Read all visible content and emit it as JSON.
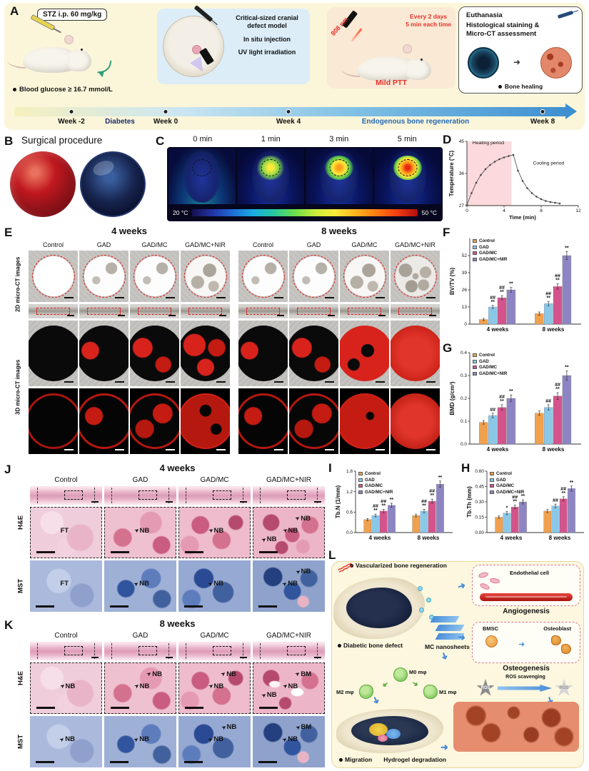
{
  "icons": {
    "arrow": "➜",
    "small_arrow": "➤",
    "nir": "≈≈≈"
  },
  "colors": {
    "control": "#F0A150",
    "gad": "#8BC8E8",
    "gad_mc": "#D4538C",
    "gad_mc_nir": "#8D85C3"
  },
  "groups": [
    "Control",
    "GAD",
    "GAD/MC",
    "GAD/MC+NIR"
  ],
  "panelA": {
    "label": "A",
    "step1": {
      "title": "STZ i.p. 60 mg/kg",
      "note": "Blood glucose ≥ 16.7 mmol/L"
    },
    "step2": {
      "line1": "Critical-sized cranial defect model",
      "line2": "In situ injection",
      "line3": "UV light irradiation"
    },
    "step3": {
      "laser": "808 nm",
      "schedule1": "Every 2 days",
      "schedule2": "5 min each time",
      "caption": "Mild PTT"
    },
    "step4": {
      "line1": "Euthanasia",
      "line2": "Histological staining &",
      "line3": "Micro-CT assessment",
      "caption": "Bone healing"
    },
    "timeline": {
      "week_m2": "Week -2",
      "week0": "Week 0",
      "week4": "Week 4",
      "week8": "Week 8",
      "phase1": "Diabetes",
      "phase2": "Endogenous bone regeneration"
    }
  },
  "panelB": {
    "label": "B",
    "title": "Surgical procedure"
  },
  "panelC": {
    "label": "C",
    "times": [
      "0 min",
      "1 min",
      "3 min",
      "5 min"
    ],
    "scale_min": "20 °C",
    "scale_max": "50 °C"
  },
  "panelD": {
    "label": "D"
  },
  "panelE": {
    "label": "E",
    "headers": [
      "4 weeks",
      "8 weeks"
    ],
    "columns": [
      "Control",
      "GAD",
      "GAD/MC",
      "GAD/MC+NIR"
    ],
    "row_2d": "2D micro-CT images",
    "row_3d": "3D micro-CT images"
  },
  "panelF": {
    "label": "F"
  },
  "panelG": {
    "label": "G"
  },
  "panelH": {
    "label": "H"
  },
  "panelI": {
    "label": "I"
  },
  "panelJ": {
    "label": "J",
    "title": "4 weeks",
    "columns": [
      "Control",
      "GAD",
      "GAD/MC",
      "GAD/MC+NIR"
    ],
    "rows": [
      "H&E",
      "MST"
    ],
    "he_labels": [
      [
        "FT"
      ],
      [
        "NB"
      ],
      [
        "NB"
      ],
      [
        "NB",
        "NB",
        "NB"
      ]
    ],
    "mst_labels": [
      [
        "FT"
      ],
      [
        "NB"
      ],
      [
        "NB"
      ],
      [
        "NB",
        "NB"
      ]
    ]
  },
  "panelK": {
    "label": "K",
    "title": "8 weeks",
    "columns": [
      "Control",
      "GAD",
      "GAD/MC",
      "GAD/MC+NIR"
    ],
    "rows": [
      "H&E",
      "MST"
    ],
    "he_labels": [
      [
        "NB"
      ],
      [
        "NB",
        "NB"
      ],
      [
        "NB",
        "NB"
      ],
      [
        "NB",
        "BM",
        "NB"
      ]
    ],
    "mst_labels": [
      [
        "NB"
      ],
      [
        "NB"
      ],
      [
        "NB",
        "NB"
      ],
      [
        "NB",
        "BM"
      ]
    ]
  },
  "panelL": {
    "label": "L",
    "defect": "Diabetic bone defect",
    "nanosheets": "MC nanosheets",
    "endothelial": "Endothelial cell",
    "angiogenesis": "Angiogenesis",
    "bmsc": "BMSC",
    "osteoblast": "Osteoblast",
    "osteogenesis": "Osteogenesis",
    "ros_left": "ROS",
    "ros_scavenging": "ROS scavenging",
    "ros_right": "ROS",
    "m0": "M0 mφ",
    "m1": "M1 mφ",
    "m2": "M2 mφ",
    "migration": "Migration",
    "degradation": "Hydrogel degradation",
    "regeneration": "Vascularized bone regeneration"
  },
  "chart_data": [
    {
      "id": "temp",
      "type": "line",
      "xlabel": "Time (min)",
      "ylabel": "Temperature (°C)",
      "xlim": [
        0,
        12
      ],
      "ylim": [
        27,
        45
      ],
      "xticks": [
        "0",
        "4",
        "8",
        "12"
      ],
      "yticks": [
        "27",
        "36",
        "45"
      ],
      "heating_span": [
        0,
        4.8
      ],
      "annotations": [
        {
          "text": "Heating period",
          "x": 2.3,
          "y": 44.2
        },
        {
          "text": "Cooling period",
          "x": 8.8,
          "y": 38.5
        }
      ],
      "x": [
        0,
        0.5,
        1,
        1.5,
        2,
        2.5,
        3,
        3.5,
        4,
        4.5,
        5,
        5.5,
        6,
        6.5,
        7,
        7.5,
        8,
        8.5,
        9,
        9.5,
        10
      ],
      "y": [
        27.2,
        30.5,
        33.4,
        35.6,
        37.2,
        38.4,
        39.3,
        40.0,
        40.5,
        40.9,
        41.2,
        36.8,
        33.9,
        31.9,
        30.5,
        29.5,
        28.8,
        28.3,
        28.0,
        27.8,
        27.6
      ]
    },
    {
      "id": "bvtv",
      "type": "bar",
      "ylabel": "BV/TV (%)",
      "categories": [
        "4 weeks",
        "8 weeks"
      ],
      "ylim": [
        0,
        65
      ],
      "yticks": [
        "0",
        "13",
        "26",
        "39",
        "52"
      ],
      "series": [
        {
          "name": "Control",
          "values": [
            3.5,
            8
          ],
          "errors": [
            0.8,
            1.2
          ]
        },
        {
          "name": "GAD",
          "values": [
            13,
            15.5
          ],
          "errors": [
            1.2,
            1.6
          ]
        },
        {
          "name": "GAD/MC",
          "values": [
            20,
            28.5
          ],
          "errors": [
            1.6,
            2
          ]
        },
        {
          "name": "GAD/MC+NIR",
          "values": [
            26,
            52
          ],
          "errors": [
            1.8,
            3
          ]
        }
      ],
      "sig": [
        [
          "",
          "##\n**",
          "##\n**",
          "**"
        ],
        [
          "",
          "##\n**",
          "##\n**",
          "**"
        ]
      ]
    },
    {
      "id": "bmd",
      "type": "bar",
      "ylabel": "BMD (g/cm³)",
      "categories": [
        "4 weeks",
        "8 weeks"
      ],
      "ylim": [
        0,
        0.4
      ],
      "yticks": [
        "0.0",
        "0.1",
        "0.2",
        "0.3",
        "0.4"
      ],
      "series": [
        {
          "name": "Control",
          "values": [
            0.095,
            0.135
          ],
          "errors": [
            0.008,
            0.01
          ]
        },
        {
          "name": "GAD",
          "values": [
            0.125,
            0.16
          ],
          "errors": [
            0.01,
            0.012
          ]
        },
        {
          "name": "GAD/MC",
          "values": [
            0.16,
            0.21
          ],
          "errors": [
            0.012,
            0.015
          ]
        },
        {
          "name": "GAD/MC+NIR",
          "values": [
            0.2,
            0.3
          ],
          "errors": [
            0.015,
            0.02
          ]
        }
      ],
      "sig": [
        [
          "",
          "##",
          "##\n**",
          "**"
        ],
        [
          "",
          "##",
          "##\n**",
          "**"
        ]
      ]
    },
    {
      "id": "tbn",
      "type": "bar",
      "ylabel": "Tb.N (1/mm)",
      "categories": [
        "4 weeks",
        "8 weeks"
      ],
      "ylim": [
        0,
        1.8
      ],
      "yticks": [
        "0.0",
        "0.6",
        "1.2",
        "1.8"
      ],
      "series": [
        {
          "name": "Control",
          "values": [
            0.38,
            0.5
          ],
          "errors": [
            0.03,
            0.04
          ]
        },
        {
          "name": "GAD",
          "values": [
            0.5,
            0.63
          ],
          "errors": [
            0.04,
            0.05
          ]
        },
        {
          "name": "GAD/MC",
          "values": [
            0.63,
            0.92
          ],
          "errors": [
            0.05,
            0.06
          ]
        },
        {
          "name": "GAD/MC+NIR",
          "values": [
            0.8,
            1.42
          ],
          "errors": [
            0.06,
            0.09
          ]
        }
      ],
      "sig": [
        [
          "",
          "##\n**",
          "##\n**",
          "**"
        ],
        [
          "",
          "##\n**",
          "##\n**",
          "**"
        ]
      ]
    },
    {
      "id": "tbth",
      "type": "bar",
      "ylabel": "Tb.Th (mm)",
      "categories": [
        "4 weeks",
        "8 weeks"
      ],
      "ylim": [
        0,
        0.6
      ],
      "yticks": [
        "0.00",
        "0.15",
        "0.30",
        "0.45",
        "0.60"
      ],
      "series": [
        {
          "name": "Control",
          "values": [
            0.15,
            0.21
          ],
          "errors": [
            0.012,
            0.015
          ]
        },
        {
          "name": "GAD",
          "values": [
            0.19,
            0.26
          ],
          "errors": [
            0.015,
            0.018
          ]
        },
        {
          "name": "GAD/MC",
          "values": [
            0.25,
            0.33
          ],
          "errors": [
            0.018,
            0.02
          ]
        },
        {
          "name": "GAD/MC+NIR",
          "values": [
            0.3,
            0.43
          ],
          "errors": [
            0.02,
            0.025
          ]
        }
      ],
      "sig": [
        [
          "",
          "*",
          "##\n**",
          "**"
        ],
        [
          "",
          "##",
          "##\n**",
          "**"
        ]
      ]
    }
  ]
}
